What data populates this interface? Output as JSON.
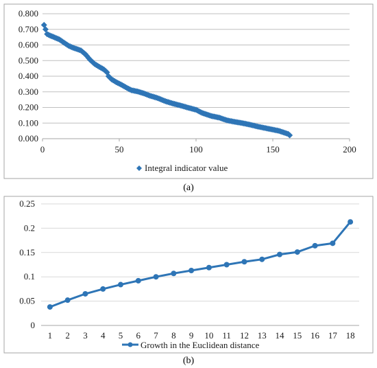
{
  "chart_data": [
    {
      "type": "scatter",
      "panel_label": "(a)",
      "legend": {
        "entries": [
          "Integral indicator value"
        ],
        "position": "bottom"
      },
      "colors": {
        "series": "#2E75B6",
        "grid": "#bfbfbf",
        "frame": "#a6a6a6"
      },
      "xlim": [
        0,
        200
      ],
      "ylim": [
        0,
        0.8
      ],
      "x_ticks": [
        "0",
        "50",
        "100",
        "150",
        "200"
      ],
      "y_ticks": [
        "0.000",
        "0.100",
        "0.200",
        "0.300",
        "0.400",
        "0.500",
        "0.600",
        "0.700",
        "0.800"
      ],
      "grid": "horizontal",
      "marker": "diamond",
      "series": [
        {
          "name": "Integral indicator value",
          "anchors": [
            [
              1,
              0.728
            ],
            [
              2,
              0.7
            ],
            [
              3,
              0.67
            ],
            [
              5,
              0.66
            ],
            [
              8,
              0.648
            ],
            [
              11,
              0.635
            ],
            [
              14,
              0.615
            ],
            [
              17,
              0.595
            ],
            [
              20,
              0.582
            ],
            [
              25,
              0.565
            ],
            [
              28,
              0.54
            ],
            [
              31,
              0.505
            ],
            [
              34,
              0.478
            ],
            [
              37,
              0.46
            ],
            [
              40,
              0.443
            ],
            [
              42,
              0.425
            ],
            [
              43,
              0.4
            ],
            [
              45,
              0.38
            ],
            [
              48,
              0.362
            ],
            [
              52,
              0.342
            ],
            [
              55,
              0.325
            ],
            [
              58,
              0.31
            ],
            [
              62,
              0.302
            ],
            [
              66,
              0.29
            ],
            [
              70,
              0.275
            ],
            [
              75,
              0.26
            ],
            [
              80,
              0.24
            ],
            [
              85,
              0.225
            ],
            [
              90,
              0.212
            ],
            [
              95,
              0.198
            ],
            [
              100,
              0.185
            ],
            [
              104,
              0.165
            ],
            [
              110,
              0.145
            ],
            [
              115,
              0.135
            ],
            [
              120,
              0.118
            ],
            [
              125,
              0.108
            ],
            [
              130,
              0.1
            ],
            [
              135,
              0.09
            ],
            [
              140,
              0.078
            ],
            [
              145,
              0.068
            ],
            [
              150,
              0.058
            ],
            [
              154,
              0.05
            ],
            [
              157,
              0.04
            ],
            [
              160,
              0.03
            ],
            [
              161,
              0.022
            ]
          ],
          "count": 161
        }
      ]
    },
    {
      "type": "line",
      "panel_label": "(b)",
      "legend": {
        "entries": [
          "Growth in the Euclidean distance"
        ],
        "position": "bottom"
      },
      "colors": {
        "series": "#2E75B6",
        "grid": "#d9d9d9",
        "frame": "#a6a6a6"
      },
      "ylim": [
        0,
        0.25
      ],
      "y_ticks": [
        "0",
        "0.05",
        "0.1",
        "0.15",
        "0.2",
        "0.25"
      ],
      "categories": [
        "1",
        "2",
        "3",
        "4",
        "5",
        "6",
        "7",
        "8",
        "9",
        "10",
        "11",
        "12",
        "13",
        "14",
        "15",
        "16",
        "17",
        "18"
      ],
      "grid": "horizontal",
      "marker": "circle",
      "series": [
        {
          "name": "Growth in the Euclidean distance",
          "values": [
            0.038,
            0.052,
            0.065,
            0.075,
            0.084,
            0.092,
            0.1,
            0.107,
            0.113,
            0.119,
            0.125,
            0.131,
            0.136,
            0.146,
            0.151,
            0.164,
            0.169,
            0.213
          ]
        }
      ]
    }
  ]
}
